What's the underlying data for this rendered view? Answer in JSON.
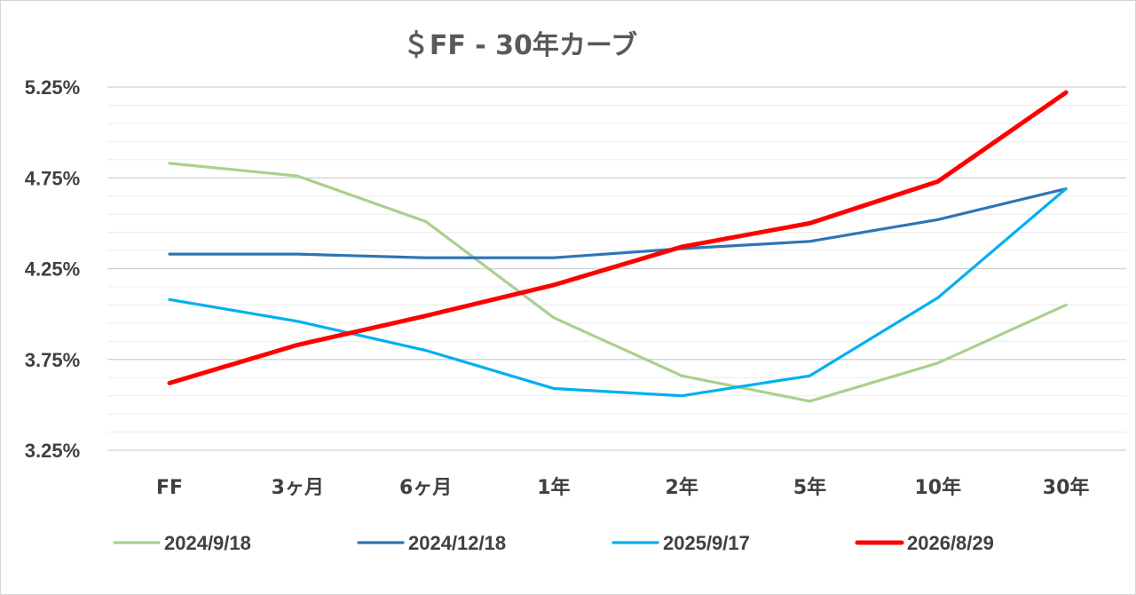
{
  "chart_data": {
    "type": "line",
    "title": "＄FF - 30年カーブ",
    "xlabel": "",
    "ylabel": "",
    "categories": [
      "FF",
      "3ヶ月",
      "6ヶ月",
      "1年",
      "2年",
      "5年",
      "10年",
      "30年"
    ],
    "ylim": [
      3.25,
      5.25
    ],
    "yticks": [
      3.25,
      3.75,
      4.25,
      4.75,
      5.25
    ],
    "ytick_labels": [
      "3.25%",
      "3.75%",
      "4.25%",
      "4.75%",
      "5.25%"
    ],
    "minor_grid_step": 0.1,
    "grid": true,
    "legend_position": "bottom",
    "series": [
      {
        "name": "2024/9/18",
        "color": "#a9d18e",
        "values": [
          4.83,
          4.76,
          4.51,
          3.98,
          3.66,
          3.52,
          3.73,
          4.05
        ]
      },
      {
        "name": "2024/12/18",
        "color": "#2e75b6",
        "values": [
          4.33,
          4.33,
          4.31,
          4.31,
          4.36,
          4.4,
          4.52,
          4.69
        ]
      },
      {
        "name": "2025/9/17",
        "color": "#00b0f0",
        "values": [
          4.08,
          3.96,
          3.8,
          3.59,
          3.55,
          3.66,
          4.09,
          4.69
        ]
      },
      {
        "name": "2026/8/29",
        "color": "#ff0000",
        "values": [
          3.62,
          3.83,
          3.99,
          4.16,
          4.37,
          4.5,
          4.73,
          5.22
        ]
      }
    ]
  }
}
